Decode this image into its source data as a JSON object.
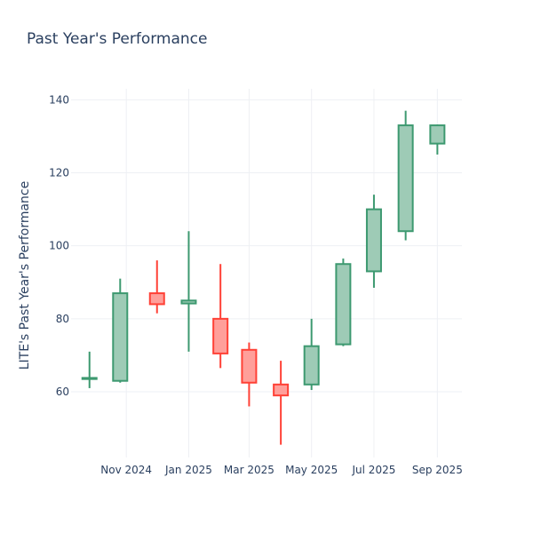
{
  "chart_data": {
    "type": "candlestick",
    "title": "Past Year's Performance",
    "ylabel": "LITE's Past Year's Performance",
    "xlabel": "",
    "ylim": [
      42,
      143
    ],
    "yticks": [
      60,
      80,
      100,
      120,
      140
    ],
    "xtick_labels": [
      "Nov 2024",
      "Jan 2025",
      "Mar 2025",
      "May 2025",
      "Jul 2025",
      "Sep 2025"
    ],
    "xtick_dates": [
      "2024-11-01",
      "2025-01-01",
      "2025-03-01",
      "2025-05-01",
      "2025-07-01",
      "2025-09-01"
    ],
    "xlim": [
      "2024-09-08",
      "2025-09-25"
    ],
    "increasing_color": "#3D9970",
    "increasing_fill": "#9ecbb6",
    "decreasing_color": "#FF4136",
    "decreasing_fill": "#ff9f9a",
    "candles": [
      {
        "date": "2024-09-26",
        "open": 63.5,
        "high": 71.0,
        "low": 61.0,
        "close": 63.8
      },
      {
        "date": "2024-10-26",
        "open": 63.0,
        "high": 91.0,
        "low": 62.5,
        "close": 87.0
      },
      {
        "date": "2024-12-01",
        "open": 87.0,
        "high": 96.0,
        "low": 81.5,
        "close": 84.0
      },
      {
        "date": "2025-01-01",
        "open": 84.2,
        "high": 104.0,
        "low": 71.0,
        "close": 85.0
      },
      {
        "date": "2025-02-01",
        "open": 80.0,
        "high": 95.0,
        "low": 66.5,
        "close": 70.5
      },
      {
        "date": "2025-03-01",
        "open": 71.5,
        "high": 73.5,
        "low": 56.0,
        "close": 62.5
      },
      {
        "date": "2025-04-01",
        "open": 62.0,
        "high": 68.5,
        "low": 45.5,
        "close": 59.0
      },
      {
        "date": "2025-05-01",
        "open": 62.0,
        "high": 80.0,
        "low": 60.5,
        "close": 72.5
      },
      {
        "date": "2025-06-01",
        "open": 73.0,
        "high": 96.5,
        "low": 72.5,
        "close": 95.0
      },
      {
        "date": "2025-07-01",
        "open": 93.0,
        "high": 114.0,
        "low": 88.5,
        "close": 110.0
      },
      {
        "date": "2025-08-01",
        "open": 104.0,
        "high": 137.0,
        "low": 101.5,
        "close": 133.0
      },
      {
        "date": "2025-09-01",
        "open": 128.0,
        "high": 133.2,
        "low": 125.0,
        "close": 133.0
      }
    ]
  }
}
